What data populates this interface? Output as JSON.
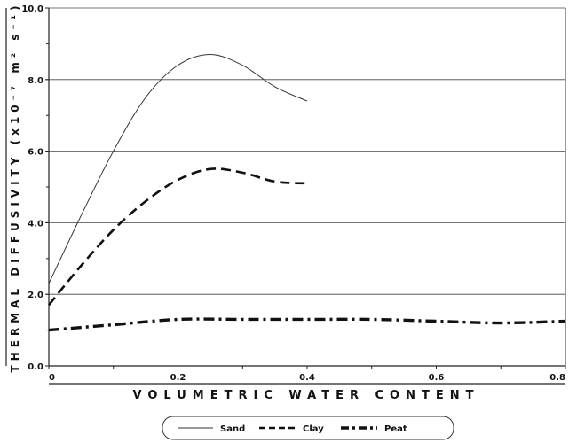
{
  "chart_data": {
    "type": "line",
    "title": "",
    "xlabel": "VOLUMETRIC WATER CONTENT",
    "ylabel": "THERMAL DIFFUSIVITY (x10⁻⁷ m² s⁻¹)",
    "xlim": [
      0,
      0.8
    ],
    "ylim": [
      0,
      10
    ],
    "x_ticks": [
      0,
      0.2,
      0.4,
      0.6,
      0.8
    ],
    "x_tick_labels": [
      "0",
      "0.2",
      "0.4",
      "0.6",
      "0.8"
    ],
    "x_minor_step": 0.1,
    "y_ticks": [
      0,
      2,
      4,
      6,
      8,
      10
    ],
    "y_tick_labels": [
      "0.0",
      "2.0",
      "4.0",
      "6.0",
      "8.0",
      "10.0"
    ],
    "y_minor_step": 1,
    "grid": "horizontal",
    "legend_position": "bottom",
    "series": [
      {
        "name": "Sand",
        "style": "solid",
        "color": "#333333",
        "x": [
          0,
          0.05,
          0.1,
          0.15,
          0.2,
          0.25,
          0.3,
          0.35,
          0.4
        ],
        "y": [
          2.3,
          4.2,
          6.0,
          7.5,
          8.4,
          8.7,
          8.4,
          7.8,
          7.4
        ]
      },
      {
        "name": "Clay",
        "style": "dashed",
        "color": "#111111",
        "x": [
          0,
          0.05,
          0.1,
          0.15,
          0.2,
          0.25,
          0.3,
          0.35,
          0.4
        ],
        "y": [
          1.7,
          2.8,
          3.8,
          4.6,
          5.2,
          5.5,
          5.4,
          5.15,
          5.1
        ]
      },
      {
        "name": "Peat",
        "style": "dashdot",
        "color": "#111111",
        "x": [
          0,
          0.1,
          0.2,
          0.3,
          0.4,
          0.5,
          0.6,
          0.7,
          0.8
        ],
        "y": [
          1.0,
          1.15,
          1.3,
          1.3,
          1.3,
          1.3,
          1.25,
          1.2,
          1.25
        ]
      }
    ]
  }
}
